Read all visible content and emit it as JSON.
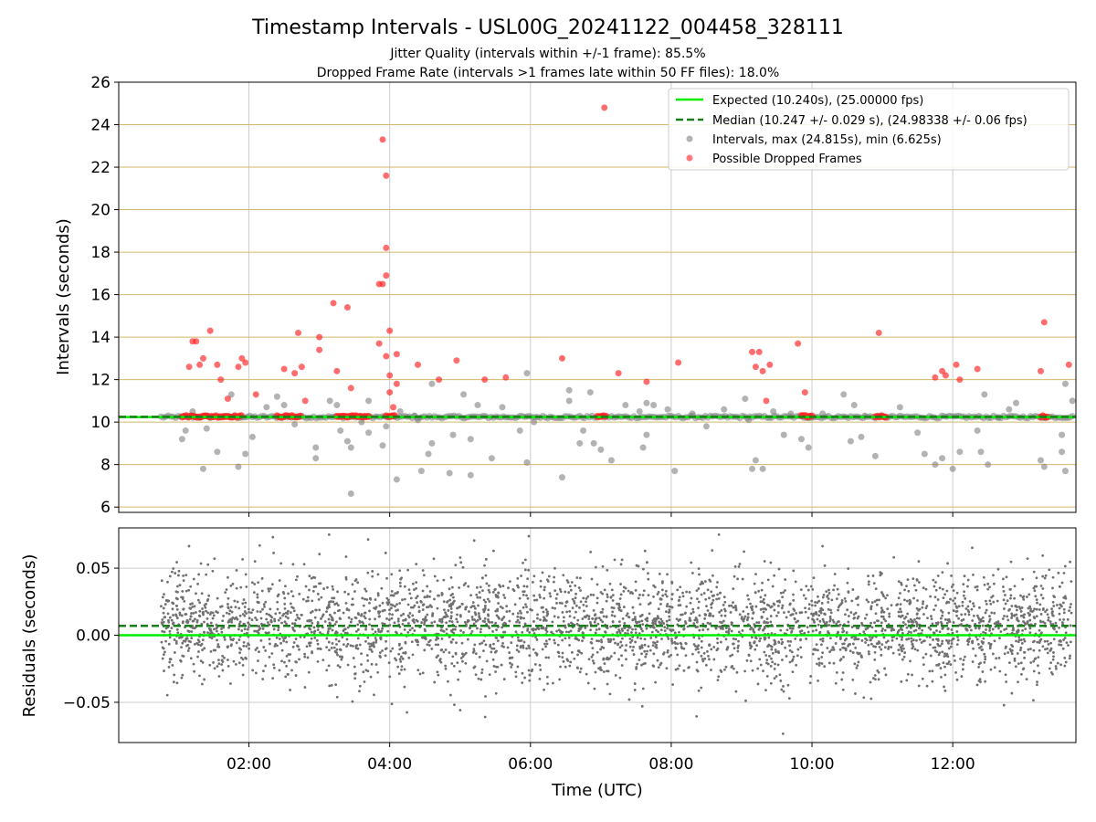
{
  "figure": {
    "title": "Timestamp Intervals - USL00G_20241122_004458_328111",
    "subtitle_1": "Jitter Quality (intervals within +/-1 frame): 85.5%",
    "subtitle_2": "Dropped Frame Rate (intervals >1 frames late within 50 FF files): 18.0%"
  },
  "colors": {
    "expected": "#00ee00",
    "median": "#1a7f1a",
    "intervals": "#808080",
    "dropped": "#ff2020",
    "hgrid": "#d4b76a",
    "grid": "#cccccc"
  },
  "chart_data": [
    {
      "type": "scatter",
      "title": "Intervals",
      "xlabel": "",
      "ylabel": "Intervals (seconds)",
      "x_unit": "hours UTC",
      "xlim": [
        0.15,
        13.75
      ],
      "ylim": [
        5.75,
        26
      ],
      "yticks": [
        6,
        8,
        10,
        12,
        14,
        16,
        18,
        20,
        22,
        24,
        26
      ],
      "xticks": [
        2,
        4,
        6,
        8,
        10,
        12
      ],
      "expected_value": 10.24,
      "median_value": 10.247,
      "legend_position": "top-right",
      "legend": [
        "Expected (10.240s), (25.00000 fps)",
        "Median (10.247 +/- 0.029 s), (24.98338 +/- 0.06 fps)",
        "Intervals, max (24.815s), min (6.625s)",
        "Possible Dropped Frames"
      ],
      "series": [
        {
          "name": "Intervals",
          "points": [
            [
              1.05,
              9.2
            ],
            [
              1.1,
              9.6
            ],
            [
              1.2,
              10.5
            ],
            [
              1.35,
              7.8
            ],
            [
              1.4,
              9.7
            ],
            [
              1.55,
              8.6
            ],
            [
              1.75,
              11.3
            ],
            [
              1.85,
              7.9
            ],
            [
              1.95,
              8.5
            ],
            [
              2.05,
              9.3
            ],
            [
              2.25,
              10.7
            ],
            [
              2.4,
              11.2
            ],
            [
              2.5,
              10.8
            ],
            [
              2.65,
              9.9
            ],
            [
              2.95,
              8.3
            ],
            [
              2.95,
              8.8
            ],
            [
              3.15,
              11.0
            ],
            [
              3.25,
              10.8
            ],
            [
              3.3,
              9.6
            ],
            [
              3.4,
              9.1
            ],
            [
              3.45,
              8.8
            ],
            [
              3.45,
              6.63
            ],
            [
              3.6,
              10.0
            ],
            [
              3.7,
              9.5
            ],
            [
              3.7,
              11.0
            ],
            [
              3.9,
              8.9
            ],
            [
              3.95,
              9.8
            ],
            [
              4.1,
              7.3
            ],
            [
              4.15,
              10.5
            ],
            [
              4.35,
              10.3
            ],
            [
              4.4,
              10.1
            ],
            [
              4.45,
              7.7
            ],
            [
              4.55,
              8.5
            ],
            [
              4.6,
              9.0
            ],
            [
              4.6,
              11.8
            ],
            [
              4.85,
              7.6
            ],
            [
              4.9,
              9.4
            ],
            [
              5.05,
              11.3
            ],
            [
              5.15,
              7.5
            ],
            [
              5.15,
              9.2
            ],
            [
              5.25,
              10.8
            ],
            [
              5.45,
              8.3
            ],
            [
              5.6,
              10.7
            ],
            [
              5.85,
              9.6
            ],
            [
              5.95,
              12.3
            ],
            [
              5.95,
              8.1
            ],
            [
              6.05,
              10.0
            ],
            [
              6.45,
              7.4
            ],
            [
              6.55,
              11.0
            ],
            [
              6.55,
              11.5
            ],
            [
              6.7,
              9.0
            ],
            [
              6.75,
              9.6
            ],
            [
              6.85,
              11.4
            ],
            [
              6.9,
              9.0
            ],
            [
              7.0,
              8.7
            ],
            [
              7.15,
              8.2
            ],
            [
              7.35,
              10.8
            ],
            [
              7.55,
              10.5
            ],
            [
              7.6,
              8.8
            ],
            [
              7.65,
              10.9
            ],
            [
              7.65,
              9.4
            ],
            [
              7.75,
              10.8
            ],
            [
              7.95,
              10.6
            ],
            [
              8.05,
              7.7
            ],
            [
              8.3,
              10.4
            ],
            [
              8.5,
              9.8
            ],
            [
              8.75,
              10.6
            ],
            [
              9.05,
              11.1
            ],
            [
              9.1,
              10.1
            ],
            [
              9.15,
              7.8
            ],
            [
              9.2,
              8.2
            ],
            [
              9.3,
              7.8
            ],
            [
              9.45,
              10.5
            ],
            [
              9.6,
              9.4
            ],
            [
              9.7,
              10.4
            ],
            [
              9.85,
              9.2
            ],
            [
              9.95,
              8.8
            ],
            [
              10.15,
              10.4
            ],
            [
              10.45,
              11.3
            ],
            [
              10.55,
              9.1
            ],
            [
              10.6,
              10.8
            ],
            [
              10.7,
              9.3
            ],
            [
              10.75,
              10.3
            ],
            [
              10.9,
              8.4
            ],
            [
              11.25,
              10.7
            ],
            [
              11.5,
              9.5
            ],
            [
              11.6,
              8.5
            ],
            [
              11.75,
              8.0
            ],
            [
              11.85,
              8.3
            ],
            [
              12.0,
              7.8
            ],
            [
              12.1,
              8.6
            ],
            [
              12.35,
              9.6
            ],
            [
              12.4,
              8.6
            ],
            [
              12.45,
              11.3
            ],
            [
              12.5,
              8.0
            ],
            [
              12.65,
              10.2
            ],
            [
              12.8,
              10.6
            ],
            [
              12.9,
              10.9
            ],
            [
              13.25,
              8.2
            ],
            [
              13.3,
              7.9
            ],
            [
              13.55,
              8.6
            ],
            [
              13.55,
              9.4
            ],
            [
              13.6,
              7.7
            ],
            [
              13.6,
              11.8
            ],
            [
              13.7,
              11.0
            ]
          ]
        },
        {
          "name": "Possible Dropped Frames",
          "points": [
            [
              1.15,
              12.6
            ],
            [
              1.2,
              13.8
            ],
            [
              1.25,
              13.8
            ],
            [
              1.3,
              12.7
            ],
            [
              1.35,
              13.0
            ],
            [
              1.45,
              14.3
            ],
            [
              1.55,
              12.7
            ],
            [
              1.6,
              12.0
            ],
            [
              1.7,
              11.1
            ],
            [
              1.85,
              12.6
            ],
            [
              1.9,
              13.0
            ],
            [
              1.95,
              12.8
            ],
            [
              2.1,
              11.3
            ],
            [
              2.5,
              12.5
            ],
            [
              2.65,
              12.3
            ],
            [
              2.7,
              14.2
            ],
            [
              2.75,
              12.6
            ],
            [
              2.8,
              11.0
            ],
            [
              3.0,
              14.0
            ],
            [
              3.0,
              13.4
            ],
            [
              3.2,
              15.6
            ],
            [
              3.25,
              12.4
            ],
            [
              3.4,
              15.4
            ],
            [
              3.45,
              11.6
            ],
            [
              3.85,
              13.7
            ],
            [
              3.85,
              16.5
            ],
            [
              3.9,
              16.5
            ],
            [
              3.9,
              23.3
            ],
            [
              3.95,
              21.6
            ],
            [
              3.95,
              16.9
            ],
            [
              3.95,
              18.2
            ],
            [
              3.95,
              13.1
            ],
            [
              4.0,
              14.3
            ],
            [
              4.0,
              12.2
            ],
            [
              4.0,
              11.4
            ],
            [
              4.05,
              10.7
            ],
            [
              4.1,
              11.8
            ],
            [
              4.1,
              13.2
            ],
            [
              4.4,
              12.7
            ],
            [
              4.7,
              12.0
            ],
            [
              4.95,
              12.9
            ],
            [
              5.35,
              12.0
            ],
            [
              5.65,
              12.1
            ],
            [
              6.45,
              13.0
            ],
            [
              7.05,
              24.8
            ],
            [
              7.25,
              12.3
            ],
            [
              7.65,
              11.9
            ],
            [
              8.1,
              12.8
            ],
            [
              9.15,
              13.3
            ],
            [
              9.2,
              12.6
            ],
            [
              9.25,
              13.3
            ],
            [
              9.3,
              12.4
            ],
            [
              9.35,
              11.0
            ],
            [
              9.4,
              12.7
            ],
            [
              9.8,
              13.7
            ],
            [
              9.9,
              11.4
            ],
            [
              10.95,
              14.2
            ],
            [
              11.75,
              12.1
            ],
            [
              11.85,
              12.4
            ],
            [
              11.9,
              12.2
            ],
            [
              12.05,
              12.7
            ],
            [
              12.1,
              12.0
            ],
            [
              12.35,
              12.5
            ],
            [
              13.25,
              12.4
            ],
            [
              13.3,
              14.7
            ],
            [
              13.65,
              12.7
            ]
          ]
        }
      ],
      "dropped_baseline_clusters": [
        [
          1.05,
          1.9
        ],
        [
          2.4,
          2.75
        ],
        [
          3.25,
          3.7
        ],
        [
          3.95,
          4.1
        ],
        [
          6.95,
          7.1
        ],
        [
          9.85,
          10.0
        ],
        [
          10.9,
          11.05
        ],
        [
          13.25,
          13.35
        ]
      ]
    },
    {
      "type": "scatter",
      "title": "Residuals",
      "xlabel": "Time (UTC)",
      "ylabel": "Residuals (seconds)",
      "x_unit": "hours UTC",
      "xlim": [
        0.15,
        13.75
      ],
      "ylim": [
        -0.08,
        0.08
      ],
      "yticks": [
        -0.05,
        0.0,
        0.05
      ],
      "ytick_labels": [
        "−0.05",
        "0.00",
        "0.05"
      ],
      "xticks": [
        2,
        4,
        6,
        8,
        10,
        12
      ],
      "xtick_labels": [
        "02:00",
        "04:00",
        "06:00",
        "08:00",
        "10:00",
        "12:00"
      ],
      "expected_value": 0.0,
      "median_value": 0.007,
      "residual_spread": [
        -0.03,
        0.05
      ],
      "residual_points": 3600
    }
  ]
}
